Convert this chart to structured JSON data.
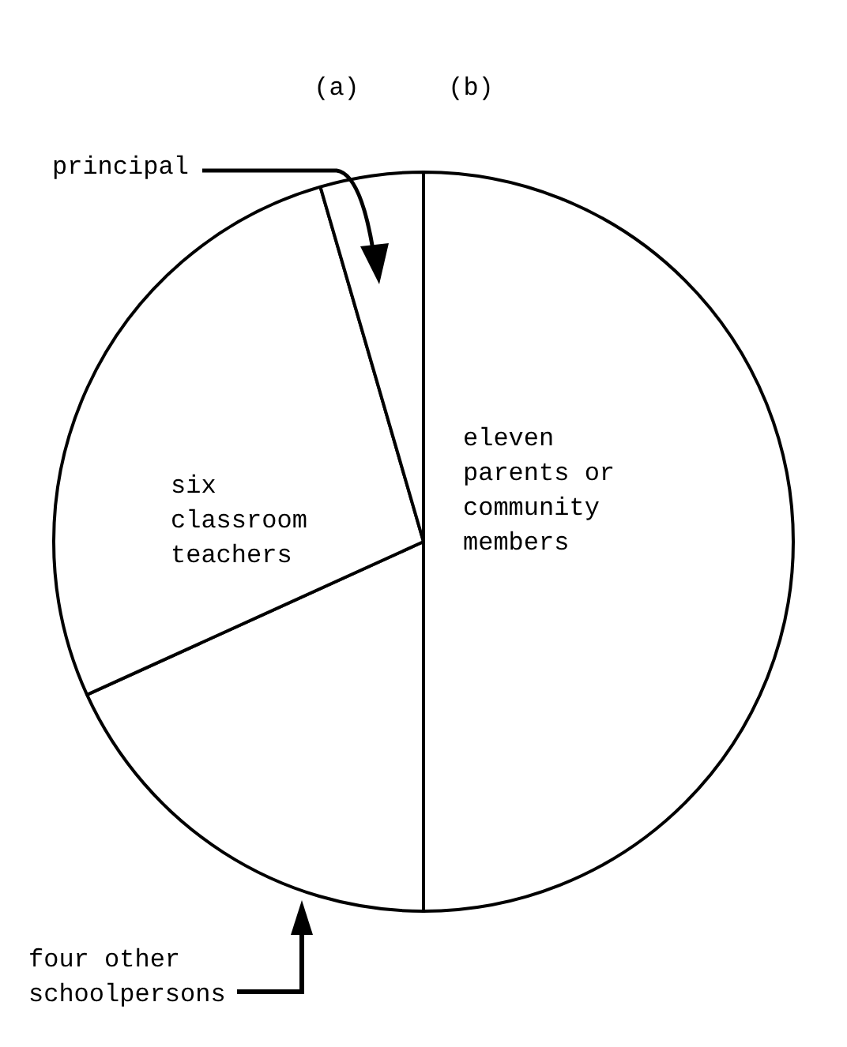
{
  "chart_data": {
    "type": "pie",
    "categories": [
      "eleven parents or community members",
      "four other schoolpersons",
      "six classroom teachers",
      "principal"
    ],
    "values": [
      50,
      18.2,
      27.3,
      4.5
    ],
    "colors": [
      "#ffffff",
      "#ffffff",
      "#ffffff",
      "#ffffff"
    ],
    "annotations": [
      "(a)",
      "(b)"
    ],
    "legend": false
  }
}
